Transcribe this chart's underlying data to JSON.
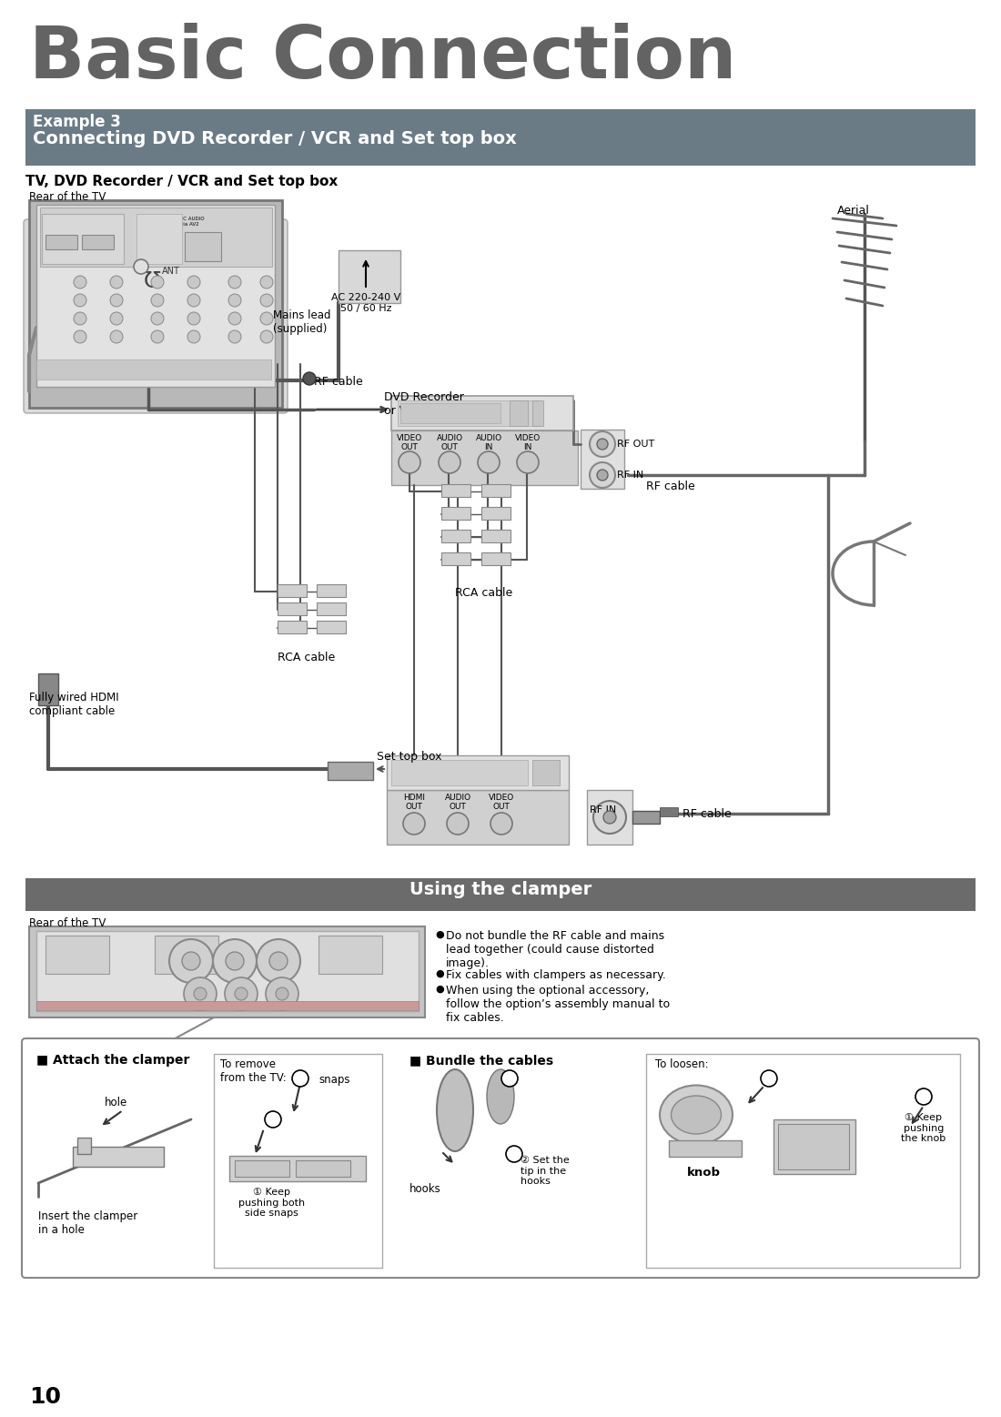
{
  "title": "Basic Connection",
  "title_color": "#636363",
  "bg_color": "#ffffff",
  "section1_bg": "#6b7b86",
  "section1_header": "Example 3",
  "section1_subheader": "Connecting DVD Recorder / VCR and Set top box",
  "section1_text_color": "#ffffff",
  "section2_bg": "#6b6b6b",
  "section2_header": "Using the clamper",
  "section2_text_color": "#ffffff",
  "subsection_title": "TV, DVD Recorder / VCR and Set top box",
  "rear_tv1": "Rear of the TV",
  "rear_tv2": "Rear of the TV",
  "aerial_label": "Aerial",
  "ac_label": "AC 220-240 V\n50 / 60 Hz",
  "mains_label": "Mains lead\n(supplied)",
  "rf_cable1": "RF cable",
  "dvd_label": "DVD Recorder\nor VCR",
  "video_out": "VIDEO\nOUT",
  "audio_out1": "AUDIO\nOUT",
  "audio_in": "AUDIO\nIN",
  "video_in": "VIDEO\nIN",
  "rf_out": "RF OUT",
  "rf_in1": "RF IN",
  "rf_cable2": "RF cable",
  "rca1": "RCA cable",
  "rca2": "RCA cable",
  "hdmi_out": "HDMI\nOUT",
  "audio_out2": "AUDIO\nOUT",
  "video_out2": "VIDEO\nOUT",
  "set_top": "Set top box",
  "rf_in2": "RF IN",
  "rf_cable3": "RF cable",
  "hdmi_label": "Fully wired HDMI\ncompliant cable",
  "bullet1": "Do not bundle the RF cable and mains\nlead together (could cause distorted\nimage).",
  "bullet2": "Fix cables with clampers as necessary.",
  "bullet3": "When using the optional accessory,\nfollow the option’s assembly manual to\nfix cables.",
  "attach_title": "■ Attach the clamper",
  "hole_label": "hole",
  "insert_label": "Insert the clamper\nin a hole",
  "remove_title": "To remove\nfrom the TV:",
  "snaps_label": "snaps",
  "keep1": "① Keep\npushing both\nside snaps",
  "bundle_title": "■ Bundle the cables",
  "hooks_label": "hooks",
  "set_label": "② Set the\ntip in the\nhooks",
  "loosen_title": "To loosen:",
  "knob_label": "knob",
  "keep2": "① Keep\npushing\nthe knob",
  "page_num": "10",
  "gray_panel": "#d8d8d8",
  "mid_gray": "#aaaaaa",
  "dark_line": "#555555",
  "border_col": "#888888"
}
